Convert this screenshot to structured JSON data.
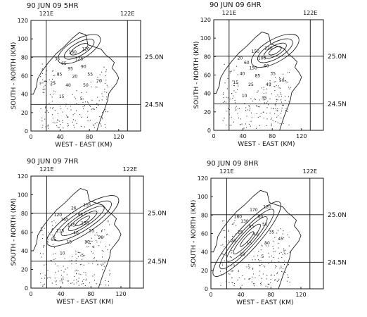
{
  "panels": [
    {
      "title": "90 JUN 09   5HR",
      "lon_labels": [
        "121E",
        "122E"
      ],
      "lat_labels": [
        "25.0N",
        "24.5N"
      ],
      "x_ticks": [
        "0",
        "40",
        "80",
        "120"
      ],
      "y_ticks": [
        "0",
        "20",
        "40",
        "60",
        "80",
        "100",
        "120"
      ],
      "xlabel": "WEST - EAST (KM)",
      "ylabel": "SOUTH - NORTH (KM)",
      "values": [
        "160",
        "120",
        "35",
        "65",
        "125",
        "95",
        "90",
        "85",
        "20",
        "55",
        "25",
        "40",
        "50",
        "70",
        "15",
        "5"
      ]
    },
    {
      "title": "90 JUN 09   6HR",
      "lon_labels": [
        "121E",
        "122E"
      ],
      "lat_labels": [
        "25.0N",
        "24.5N"
      ],
      "x_ticks": [
        "0",
        "40",
        "80",
        "120"
      ],
      "y_ticks": [
        "0",
        "20",
        "40",
        "60",
        "80",
        "100",
        "120"
      ],
      "xlabel": "WEST - EAST (KM)",
      "ylabel": "SOUTH - NORTH (KM)",
      "values": [
        "150",
        "220",
        "20",
        "60",
        "100",
        "150",
        "60",
        "40",
        "85",
        "35",
        "15",
        "25",
        "45",
        "50",
        "10",
        "35"
      ]
    },
    {
      "title": "90 JUN 09   7HR",
      "lon_labels": [
        "121E",
        "122E"
      ],
      "lat_labels": [
        "25.0N",
        "24.5N"
      ],
      "x_ticks": [
        "0",
        "40",
        "80",
        "120"
      ],
      "y_ticks": [
        "0",
        "20",
        "40",
        "60",
        "80",
        "100",
        "120"
      ],
      "xlabel": "WEST - EAST (KM)",
      "ylabel": "SOUTH - NORTH (KM)",
      "values": [
        "26",
        "155",
        "120",
        "165",
        "95",
        "145",
        "135",
        "115",
        "40",
        "55",
        "65",
        "15",
        "30",
        "50",
        "10",
        "5"
      ]
    },
    {
      "title": "90 JUN 09   8HR",
      "lon_labels": [
        "121E",
        "122E"
      ],
      "lat_labels": [
        "25.0N",
        "24.5N"
      ],
      "x_ticks": [
        "0",
        "40",
        "80",
        "120"
      ],
      "y_ticks": [
        "0",
        "20",
        "40",
        "60",
        "80",
        "100",
        "120"
      ],
      "xlabel": "WEST - EAST (KM)",
      "ylabel": "SOUTH - NORTH (KM)",
      "values": [
        "170",
        "120",
        "180",
        "130",
        "60",
        "95",
        "55",
        "25",
        "40",
        "35",
        "20",
        "15",
        "50",
        "45",
        "10",
        "5"
      ]
    }
  ]
}
